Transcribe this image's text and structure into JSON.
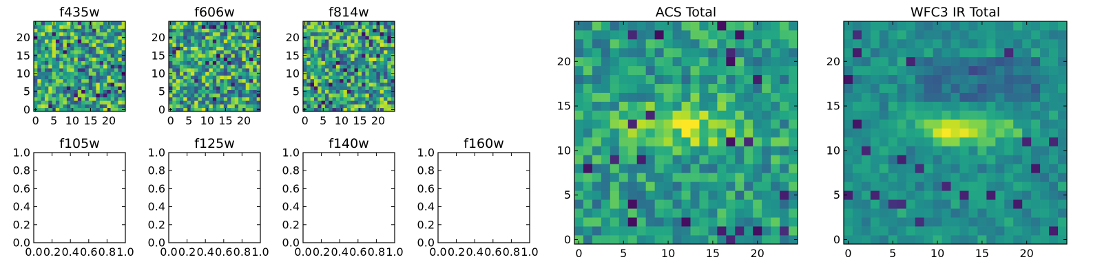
{
  "chart_data": [
    {
      "type": "heatmap",
      "title": "f435w",
      "x_ticks": [
        "0",
        "5",
        "10",
        "15",
        "20"
      ],
      "y_ticks": [
        "0",
        "5",
        "10",
        "15",
        "20"
      ],
      "xlim": [
        -0.5,
        24.5
      ],
      "ylim": [
        -0.5,
        24.5
      ],
      "grid_size": 25,
      "colormap": "viridis",
      "pattern": "noise"
    },
    {
      "type": "heatmap",
      "title": "f606w",
      "x_ticks": [
        "0",
        "5",
        "10",
        "15",
        "20"
      ],
      "y_ticks": [
        "0",
        "5",
        "10",
        "15",
        "20"
      ],
      "xlim": [
        -0.5,
        24.5
      ],
      "ylim": [
        -0.5,
        24.5
      ],
      "grid_size": 25,
      "colormap": "viridis",
      "pattern": "noise"
    },
    {
      "type": "heatmap",
      "title": "f814w",
      "x_ticks": [
        "0",
        "5",
        "10",
        "15",
        "20"
      ],
      "y_ticks": [
        "0",
        "5",
        "10",
        "15",
        "20"
      ],
      "xlim": [
        -0.5,
        24.5
      ],
      "ylim": [
        -0.5,
        24.5
      ],
      "grid_size": 25,
      "colormap": "viridis",
      "pattern": "noise"
    },
    {
      "type": "empty",
      "title": "f105w",
      "x_ticks": [
        "0.0",
        "0.2",
        "0.4",
        "0.6",
        "0.8",
        "1.0"
      ],
      "y_ticks": [
        "0.0",
        "0.2",
        "0.4",
        "0.6",
        "0.8",
        "1.0"
      ],
      "xlim": [
        0,
        1
      ],
      "ylim": [
        0,
        1
      ]
    },
    {
      "type": "empty",
      "title": "f125w",
      "x_ticks": [
        "0.0",
        "0.2",
        "0.4",
        "0.6",
        "0.8",
        "1.0"
      ],
      "y_ticks": [
        "0.0",
        "0.2",
        "0.4",
        "0.6",
        "0.8",
        "1.0"
      ],
      "xlim": [
        0,
        1
      ],
      "ylim": [
        0,
        1
      ]
    },
    {
      "type": "empty",
      "title": "f140w",
      "x_ticks": [
        "0.0",
        "0.2",
        "0.4",
        "0.6",
        "0.8",
        "1.0"
      ],
      "y_ticks": [
        "0.0",
        "0.2",
        "0.4",
        "0.6",
        "0.8",
        "1.0"
      ],
      "xlim": [
        0,
        1
      ],
      "ylim": [
        0,
        1
      ]
    },
    {
      "type": "empty",
      "title": "f160w",
      "x_ticks": [
        "0.0",
        "0.2",
        "0.4",
        "0.6",
        "0.8",
        "1.0"
      ],
      "y_ticks": [
        "0.0",
        "0.2",
        "0.4",
        "0.6",
        "0.8",
        "1.0"
      ],
      "xlim": [
        0,
        1
      ],
      "ylim": [
        0,
        1
      ]
    },
    {
      "type": "heatmap",
      "title": "ACS Total",
      "x_ticks": [
        "0",
        "5",
        "10",
        "15",
        "20"
      ],
      "y_ticks": [
        "0",
        "5",
        "10",
        "15",
        "20"
      ],
      "xlim": [
        -0.5,
        24.5
      ],
      "ylim": [
        -0.5,
        24.5
      ],
      "grid_size": 25,
      "colormap": "viridis",
      "pattern": "acs"
    },
    {
      "type": "heatmap",
      "title": "WFC3 IR Total",
      "x_ticks": [
        "0",
        "5",
        "10",
        "15",
        "20"
      ],
      "y_ticks": [
        "0",
        "5",
        "10",
        "15",
        "20"
      ],
      "xlim": [
        -0.5,
        24.5
      ],
      "ylim": [
        -0.5,
        24.5
      ],
      "grid_size": 25,
      "colormap": "viridis",
      "pattern": "ir"
    }
  ]
}
